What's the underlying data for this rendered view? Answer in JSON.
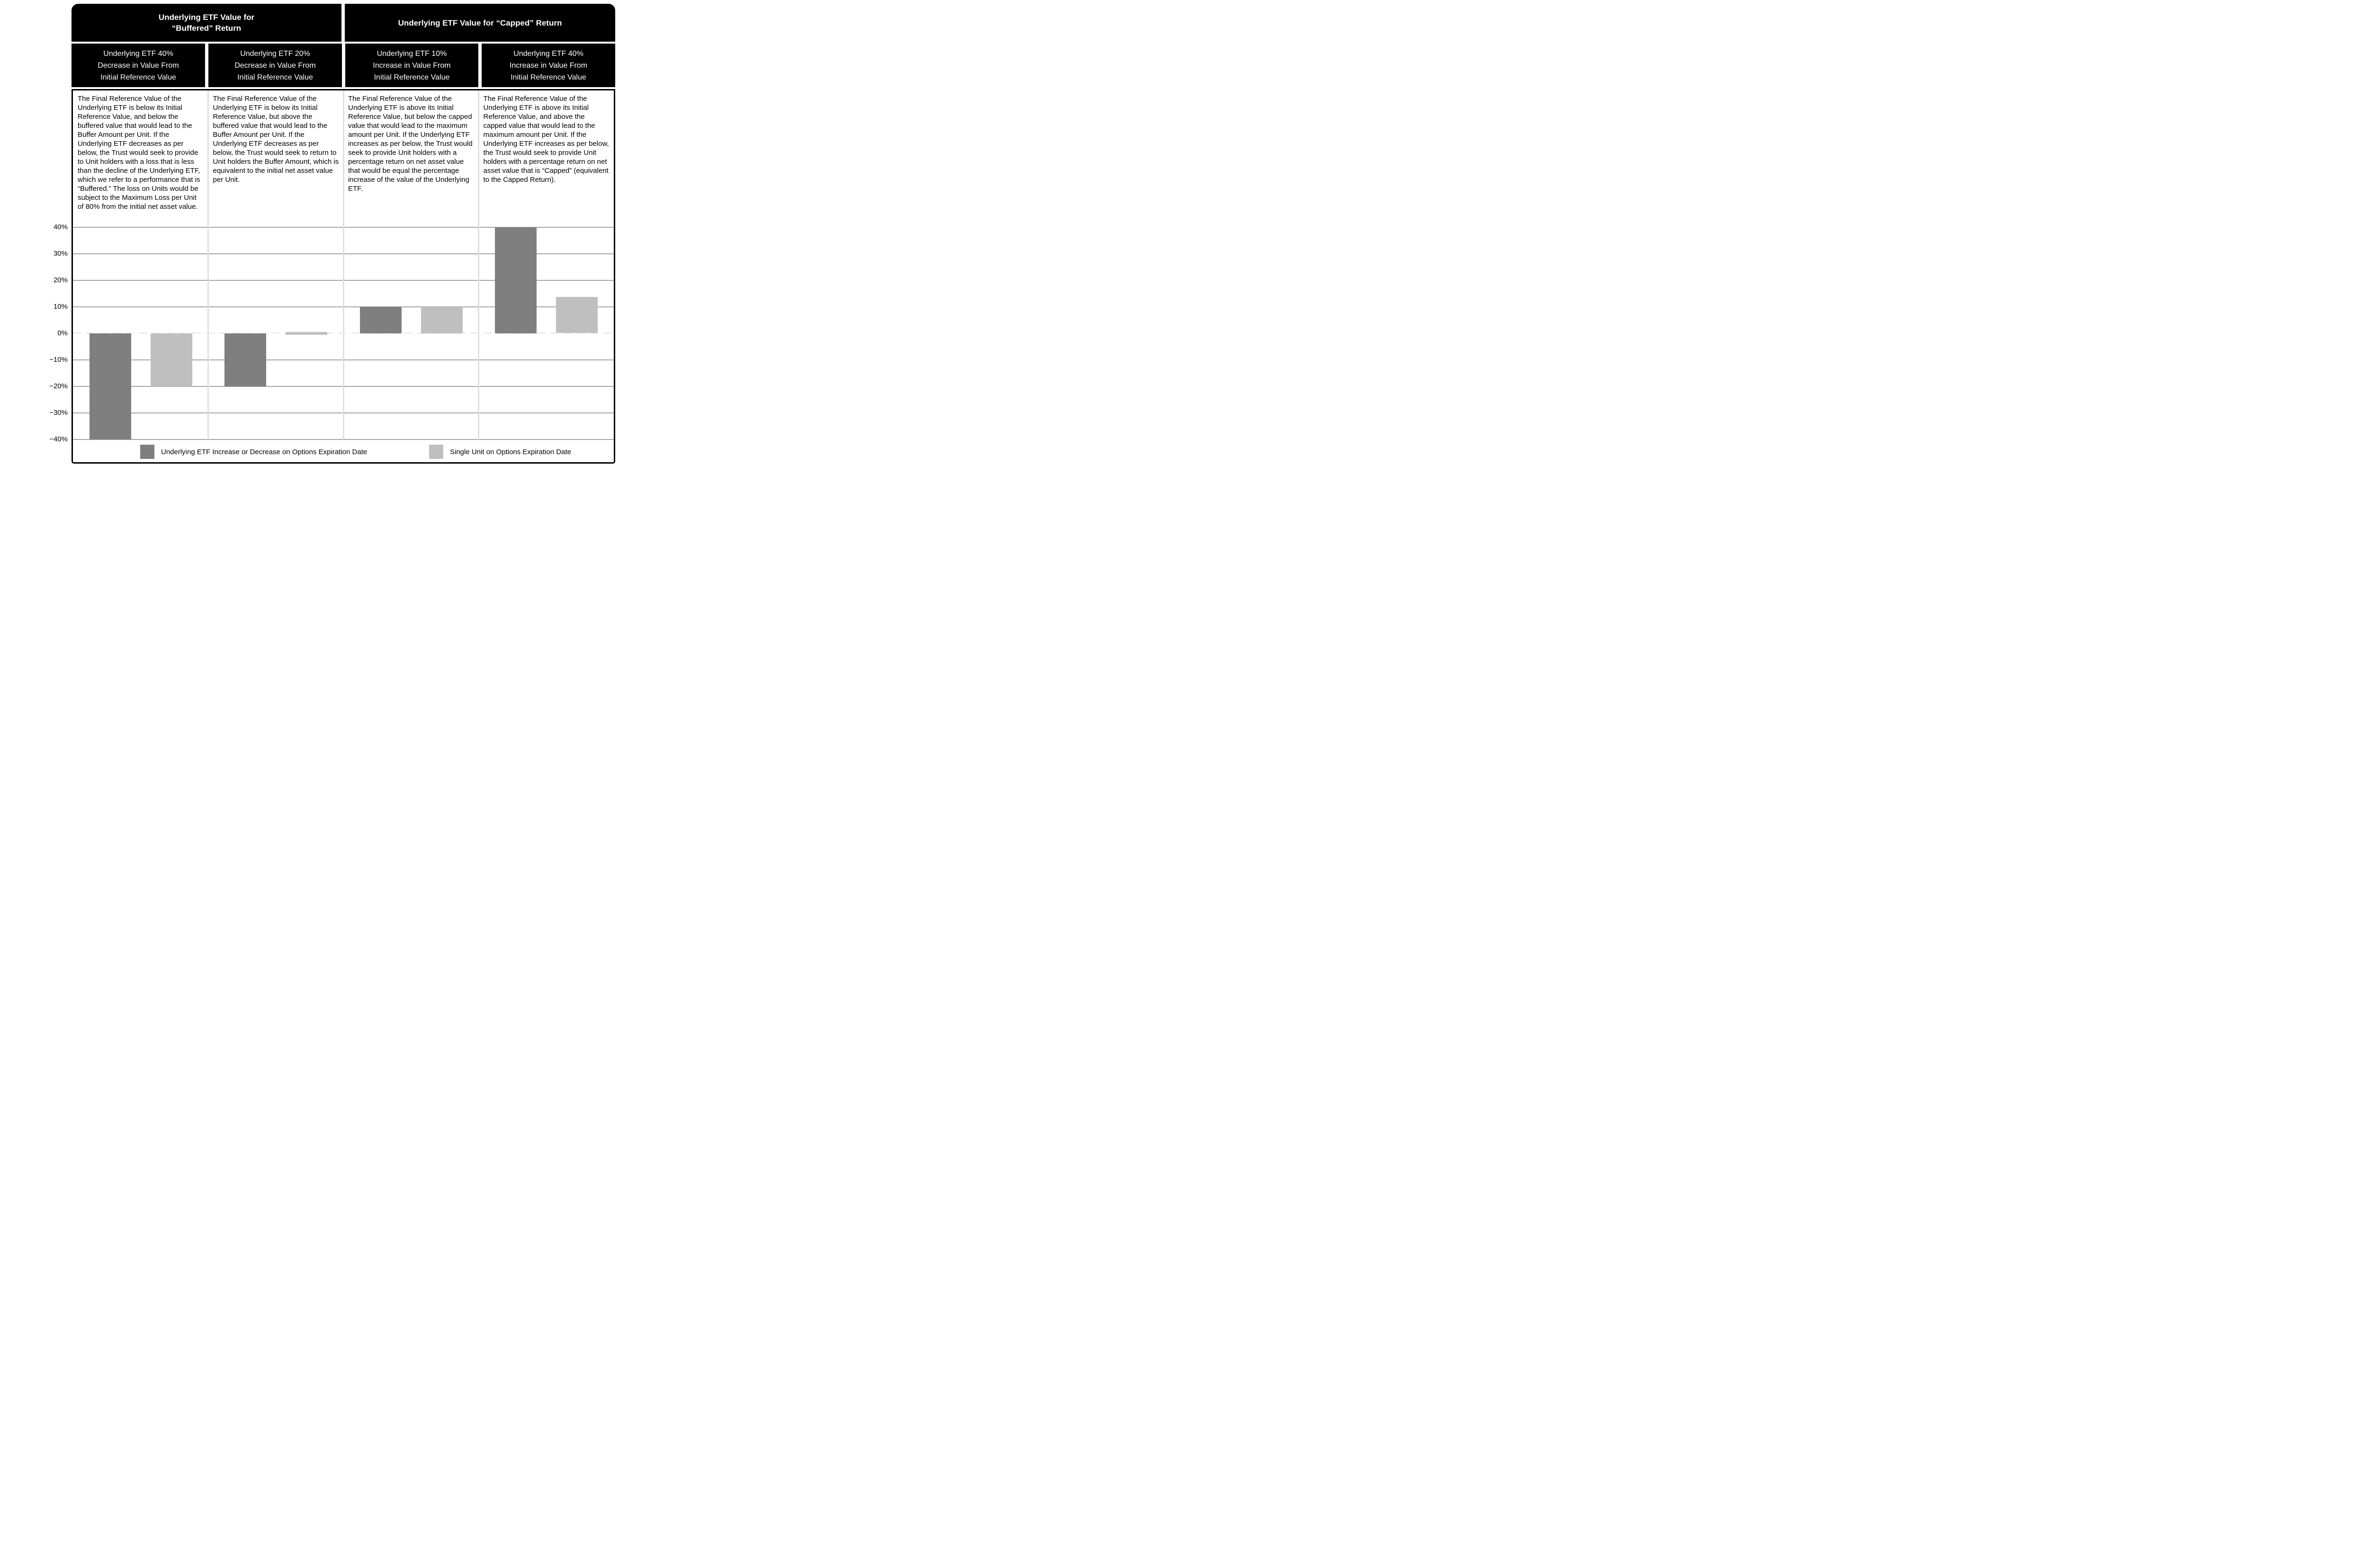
{
  "header_groups": [
    {
      "lines": [
        "Underlying ETF Value for",
        "“Buffered” Return"
      ]
    },
    {
      "lines": [
        "Underlying ETF Value for “Capped” Return"
      ]
    }
  ],
  "columns": [
    {
      "subheader_lines": [
        "Underlying ETF 40%",
        "Decrease in Value From",
        "Initial Reference Value"
      ],
      "description": "The Final Reference Value of the Underlying ETF is below its Initial Reference Value, and below the buffered value that would lead to the Buffer Amount per Unit. If the Underlying ETF decreases as per below, the Trust would seek to provide to Unit holders with a loss that is less than the decline of the Underlying ETF, which we refer to a performance that is “Buffered.” The loss on Units would be subject to the Maximum Loss per Unit of 80% from the initial net asset value."
    },
    {
      "subheader_lines": [
        "Underlying ETF 20%",
        "Decrease in Value From",
        "Initial Reference Value"
      ],
      "description": "The Final Reference Value of the Underlying ETF is below its Initial Reference Value, but above the buffered value that would lead to the Buffer Amount per Unit. If the Underlying ETF decreases as per below, the Trust would seek to return to Unit holders the Buffer Amount, which is equivalent to the initial net asset value per Unit."
    },
    {
      "subheader_lines": [
        "Underlying ETF 10%",
        "Increase in Value From",
        "Initial Reference Value"
      ],
      "description": "The Final Reference Value of the Underlying ETF is above its Initial Reference Value, but below the capped value that would lead to the maximum amount per Unit. If the Underlying ETF increases as per below, the Trust would seek to provide Unit holders with a percentage return on net asset value that would be equal the percentage increase of the value of the Underlying ETF."
    },
    {
      "subheader_lines": [
        "Underlying ETF 40%",
        "Increase in Value From",
        "Initial Reference Value"
      ],
      "description": "The Final Reference Value of the Underlying ETF is above its Initial Reference Value, and above the capped value that would lead to the maximum amount per Unit. If the Underlying ETF increases as per below, the Trust would seek to provide Unit holders with a percentage return on net asset value that is “Capped” (equivalent to the Capped Return)."
    }
  ],
  "chart_data": {
    "type": "bar",
    "categories": [
      "Underlying ETF 40% Decrease in Value From Initial Reference Value",
      "Underlying ETF 20% Decrease in Value From Initial Reference Value",
      "Underlying ETF 10% Increase in Value From Initial Reference Value",
      "Underlying ETF 40% Increase in Value From Initial Reference Value"
    ],
    "series": [
      {
        "name": "Underlying ETF Increase or Decrease on Options Expiration Date",
        "color": "#7f7f7f",
        "values": [
          -40,
          -20,
          10,
          40
        ]
      },
      {
        "name": "Single Unit on Options Expiration Date",
        "color": "#bfbfbf",
        "values": [
          -20,
          0,
          10,
          13.7
        ]
      }
    ],
    "ylim": [
      -40,
      40
    ],
    "ytick_values": [
      40,
      30,
      20,
      10,
      0,
      -10,
      -20,
      -30,
      -40
    ],
    "ytick_labels": [
      "40%",
      "30%",
      "20%",
      "10%",
      "0%",
      "−10%",
      "−20%",
      "−30%",
      "−40%"
    ],
    "grid": true,
    "zero_line_style": "dashed",
    "legend_position": "bottom",
    "colors": {
      "grid": "#a6a6a6",
      "zero_dash": "#ececec",
      "header_bg": "#000000",
      "header_text": "#ffffff",
      "divider": "#e0e0e0"
    }
  }
}
